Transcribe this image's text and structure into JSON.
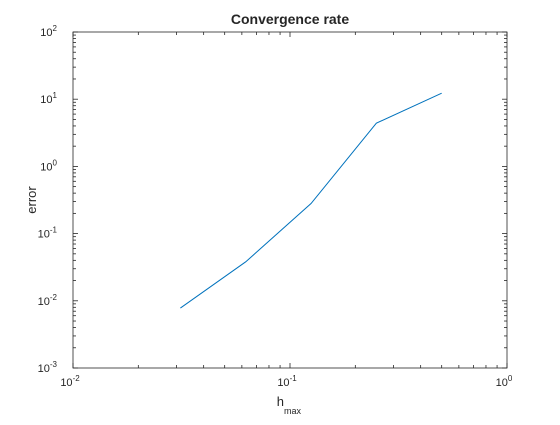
{
  "chart_data": {
    "type": "line",
    "title": "Convergence rate",
    "xlabel": {
      "base": "h",
      "subscript": "max"
    },
    "ylabel": "error",
    "xscale": "log",
    "yscale": "log",
    "xlim": [
      0.01,
      1
    ],
    "ylim": [
      0.001,
      100
    ],
    "xticks": [
      {
        "value": 0.01,
        "base": "10",
        "exp": "-2"
      },
      {
        "value": 0.1,
        "base": "10",
        "exp": "-1"
      },
      {
        "value": 1,
        "base": "10",
        "exp": "0"
      }
    ],
    "yticks": [
      {
        "value": 0.001,
        "base": "10",
        "exp": "-3"
      },
      {
        "value": 0.01,
        "base": "10",
        "exp": "-2"
      },
      {
        "value": 0.1,
        "base": "10",
        "exp": "-1"
      },
      {
        "value": 1,
        "base": "10",
        "exp": "0"
      },
      {
        "value": 10,
        "base": "10",
        "exp": "1"
      },
      {
        "value": 100,
        "base": "10",
        "exp": "2"
      }
    ],
    "grid": false,
    "series": [
      {
        "color": "#0072bd",
        "x": [
          0.03125,
          0.0625,
          0.125,
          0.25,
          0.5
        ],
        "y": [
          0.0078,
          0.038,
          0.28,
          4.4,
          12.3
        ]
      }
    ]
  }
}
